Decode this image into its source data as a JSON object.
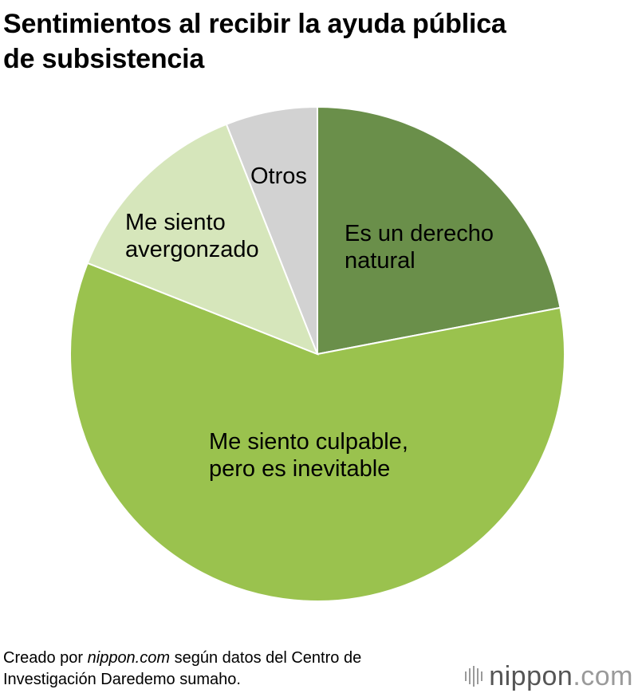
{
  "title_line1": "Sentimientos al recibir la ayuda pública",
  "title_line2": "de subsistencia",
  "chart_data": {
    "type": "pie",
    "title": "Sentimientos al recibir la ayuda pública de subsistencia",
    "start_angle_deg": 0,
    "direction": "clockwise",
    "slices": [
      {
        "label_lines": [
          "Es un derecho",
          "natural"
        ],
        "value": 22,
        "color": "#6a8f4a"
      },
      {
        "label_lines": [
          "Me siento culpable,",
          "pero es inevitable"
        ],
        "value": 59,
        "color": "#9ac24e"
      },
      {
        "label_lines": [
          "Me siento",
          "avergonzado"
        ],
        "value": 13,
        "color": "#d6e6bb"
      },
      {
        "label_lines": [
          "Otros"
        ],
        "value": 6,
        "color": "#d2d2d2"
      }
    ]
  },
  "footer": {
    "prefix": "Creado por ",
    "site": "nippon.com",
    "suffix": " según datos del Centro de",
    "line2": "Investigación Daredemo sumaho."
  },
  "brand": {
    "name": "nippon",
    "tld": ".com",
    "name_color": "#555555",
    "tld_color": "#9a9a9a"
  }
}
